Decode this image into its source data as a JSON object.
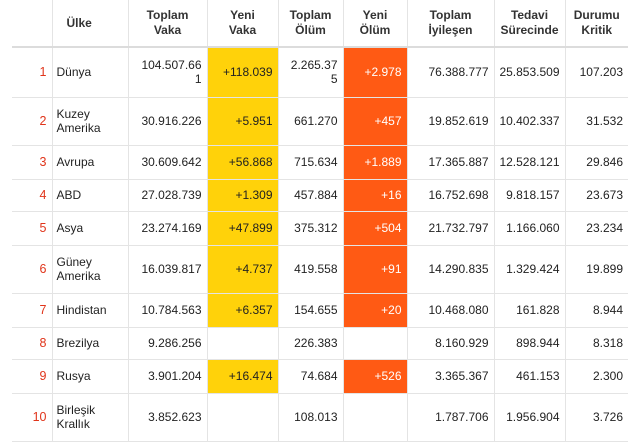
{
  "headers": {
    "rank": "",
    "country": "Ülke",
    "total_cases": [
      "Toplam",
      "Vaka"
    ],
    "new_cases": [
      "Yeni",
      "Vaka"
    ],
    "total_deaths": [
      "Toplam",
      "Ölüm"
    ],
    "new_deaths": [
      "Yeni",
      "Ölüm"
    ],
    "total_recovered": [
      "Toplam",
      "İyileşen"
    ],
    "active": [
      "Tedavi",
      "Sürecinde"
    ],
    "critical": [
      "Durumu",
      "Kritik"
    ]
  },
  "colors": {
    "new_cases_bg": "#ffd20a",
    "new_deaths_bg": "#ff5a14",
    "rank_text": "#e0341a"
  },
  "rows": [
    {
      "rank": "1",
      "country": [
        "Dünya"
      ],
      "total_cases": [
        "104.507.66",
        "1"
      ],
      "new_cases": "+118.039",
      "total_deaths": [
        "2.265.37",
        "5"
      ],
      "new_deaths": "+2.978",
      "total_recovered": "76.388.777",
      "active": "25.853.509",
      "critical": "107.203"
    },
    {
      "rank": "2",
      "country": [
        "Kuzey",
        "Amerika"
      ],
      "total_cases": [
        "30.916.226"
      ],
      "new_cases": "+5.951",
      "total_deaths": [
        "661.270"
      ],
      "new_deaths": "+457",
      "total_recovered": "19.852.619",
      "active": "10.402.337",
      "critical": "31.532"
    },
    {
      "rank": "3",
      "country": [
        "Avrupa"
      ],
      "total_cases": [
        "30.609.642"
      ],
      "new_cases": "+56.868",
      "total_deaths": [
        "715.634"
      ],
      "new_deaths": "+1.889",
      "total_recovered": "17.365.887",
      "active": "12.528.121",
      "critical": "29.846"
    },
    {
      "rank": "4",
      "country": [
        "ABD"
      ],
      "total_cases": [
        "27.028.739"
      ],
      "new_cases": "+1.309",
      "total_deaths": [
        "457.884"
      ],
      "new_deaths": "+16",
      "total_recovered": "16.752.698",
      "active": "9.818.157",
      "critical": "23.673"
    },
    {
      "rank": "5",
      "country": [
        "Asya"
      ],
      "total_cases": [
        "23.274.169"
      ],
      "new_cases": "+47.899",
      "total_deaths": [
        "375.312"
      ],
      "new_deaths": "+504",
      "total_recovered": "21.732.797",
      "active": "1.166.060",
      "critical": "23.234"
    },
    {
      "rank": "6",
      "country": [
        "Güney",
        "Amerika"
      ],
      "total_cases": [
        "16.039.817"
      ],
      "new_cases": "+4.737",
      "total_deaths": [
        "419.558"
      ],
      "new_deaths": "+91",
      "total_recovered": "14.290.835",
      "active": "1.329.424",
      "critical": "19.899"
    },
    {
      "rank": "7",
      "country": [
        "Hindistan"
      ],
      "total_cases": [
        "10.784.563"
      ],
      "new_cases": "+6.357",
      "total_deaths": [
        "154.655"
      ],
      "new_deaths": "+20",
      "total_recovered": "10.468.080",
      "active": "161.828",
      "critical": "8.944"
    },
    {
      "rank": "8",
      "country": [
        "Brezilya"
      ],
      "total_cases": [
        "9.286.256"
      ],
      "new_cases": "",
      "total_deaths": [
        "226.383"
      ],
      "new_deaths": "",
      "total_recovered": "8.160.929",
      "active": "898.944",
      "critical": "8.318"
    },
    {
      "rank": "9",
      "country": [
        "Rusya"
      ],
      "total_cases": [
        "3.901.204"
      ],
      "new_cases": "+16.474",
      "total_deaths": [
        "74.684"
      ],
      "new_deaths": "+526",
      "total_recovered": "3.365.367",
      "active": "461.153",
      "critical": "2.300"
    },
    {
      "rank": "10",
      "country": [
        "Birleşik",
        "Krallık"
      ],
      "total_cases": [
        "3.852.623"
      ],
      "new_cases": "",
      "total_deaths": [
        "108.013"
      ],
      "new_deaths": "",
      "total_recovered": "1.787.706",
      "active": "1.956.904",
      "critical": "3.726"
    }
  ]
}
